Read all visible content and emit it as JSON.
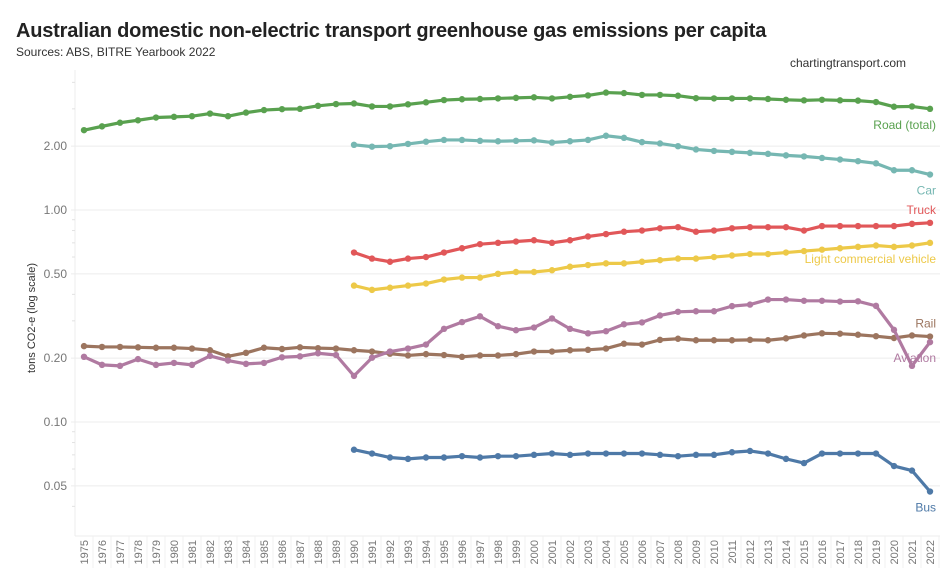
{
  "chart_data": {
    "type": "line",
    "title": "Australian domestic non-electric transport greenhouse gas emissions per capita",
    "subtitle": "Sources: ABS, BITRE Yearbook 2022",
    "credit": "chartingtransport.com",
    "xlabel": "",
    "ylabel": "tons CO2-e (log scale)",
    "yscale": "log",
    "ylim": [
      0.04,
      4.0
    ],
    "yticks": [
      0.05,
      0.1,
      0.2,
      0.5,
      1.0,
      2.0
    ],
    "ytick_labels": [
      "0.05",
      "0.10",
      "0.20",
      "0.50",
      "1.00",
      "2.00"
    ],
    "grid": true,
    "x": [
      "1975",
      "1976",
      "1977",
      "1978",
      "1979",
      "1980",
      "1981",
      "1982",
      "1983",
      "1984",
      "1985",
      "1986",
      "1987",
      "1988",
      "1989",
      "1990",
      "1991",
      "1992",
      "1993",
      "1994",
      "1995",
      "1996",
      "1997",
      "1998",
      "1999",
      "2000",
      "2001",
      "2002",
      "2003",
      "2004",
      "2005",
      "2006",
      "2007",
      "2008",
      "2009",
      "2010",
      "2011",
      "2012",
      "2013",
      "2014",
      "2015",
      "2016",
      "2017",
      "2018",
      "2019",
      "2020",
      "2021",
      "2022"
    ],
    "series": [
      {
        "name": "Road (total)",
        "color": "#59a14f",
        "label_position": "below-end",
        "values": [
          2.38,
          2.48,
          2.58,
          2.65,
          2.73,
          2.75,
          2.77,
          2.85,
          2.77,
          2.88,
          2.96,
          2.99,
          3.0,
          3.1,
          3.16,
          3.18,
          3.08,
          3.08,
          3.15,
          3.22,
          3.3,
          3.33,
          3.34,
          3.36,
          3.38,
          3.4,
          3.36,
          3.42,
          3.47,
          3.58,
          3.56,
          3.49,
          3.49,
          3.46,
          3.37,
          3.36,
          3.36,
          3.36,
          3.34,
          3.31,
          3.29,
          3.31,
          3.29,
          3.28,
          3.23,
          3.07,
          3.08,
          3.0
        ]
      },
      {
        "name": "Car",
        "color": "#76b7b2",
        "label_position": "below-end",
        "values": [
          null,
          null,
          null,
          null,
          null,
          null,
          null,
          null,
          null,
          null,
          null,
          null,
          null,
          null,
          null,
          2.03,
          1.99,
          2.0,
          2.05,
          2.1,
          2.14,
          2.14,
          2.12,
          2.11,
          2.12,
          2.13,
          2.08,
          2.11,
          2.14,
          2.24,
          2.19,
          2.09,
          2.06,
          2.0,
          1.93,
          1.9,
          1.88,
          1.86,
          1.84,
          1.81,
          1.79,
          1.76,
          1.73,
          1.7,
          1.66,
          1.54,
          1.54,
          1.47
        ]
      },
      {
        "name": "Truck",
        "color": "#e15759",
        "label_position": "above-end",
        "values": [
          null,
          null,
          null,
          null,
          null,
          null,
          null,
          null,
          null,
          null,
          null,
          null,
          null,
          null,
          null,
          0.63,
          0.59,
          0.57,
          0.59,
          0.6,
          0.63,
          0.66,
          0.69,
          0.7,
          0.71,
          0.72,
          0.7,
          0.72,
          0.75,
          0.77,
          0.79,
          0.8,
          0.82,
          0.83,
          0.79,
          0.8,
          0.82,
          0.83,
          0.83,
          0.83,
          0.8,
          0.84,
          0.84,
          0.84,
          0.84,
          0.84,
          0.86,
          0.87
        ]
      },
      {
        "name": "Light commercial vehicle",
        "color": "#edc948",
        "label_position": "below-end",
        "values": [
          null,
          null,
          null,
          null,
          null,
          null,
          null,
          null,
          null,
          null,
          null,
          null,
          null,
          null,
          null,
          0.44,
          0.42,
          0.43,
          0.44,
          0.45,
          0.47,
          0.48,
          0.48,
          0.5,
          0.51,
          0.51,
          0.52,
          0.54,
          0.55,
          0.56,
          0.56,
          0.57,
          0.58,
          0.59,
          0.59,
          0.6,
          0.61,
          0.62,
          0.62,
          0.63,
          0.64,
          0.65,
          0.66,
          0.67,
          0.68,
          0.67,
          0.68,
          0.7
        ]
      },
      {
        "name": "Rail",
        "color": "#9c755f",
        "label_position": "above-end",
        "values": [
          0.228,
          0.226,
          0.226,
          0.225,
          0.224,
          0.224,
          0.222,
          0.218,
          0.204,
          0.212,
          0.224,
          0.221,
          0.225,
          0.223,
          0.222,
          0.218,
          0.215,
          0.21,
          0.206,
          0.209,
          0.207,
          0.203,
          0.206,
          0.206,
          0.209,
          0.215,
          0.215,
          0.218,
          0.219,
          0.222,
          0.234,
          0.232,
          0.244,
          0.247,
          0.243,
          0.243,
          0.243,
          0.244,
          0.243,
          0.248,
          0.256,
          0.262,
          0.261,
          0.258,
          0.254,
          0.249,
          0.256,
          0.253
        ]
      },
      {
        "name": "Aviation",
        "color": "#b07aa1",
        "label_position": "below-end",
        "values": [
          0.203,
          0.186,
          0.184,
          0.198,
          0.186,
          0.19,
          0.186,
          0.205,
          0.195,
          0.188,
          0.19,
          0.202,
          0.204,
          0.211,
          0.207,
          0.165,
          0.201,
          0.215,
          0.222,
          0.232,
          0.275,
          0.296,
          0.315,
          0.283,
          0.271,
          0.279,
          0.308,
          0.275,
          0.262,
          0.268,
          0.289,
          0.295,
          0.318,
          0.331,
          0.333,
          0.333,
          0.352,
          0.358,
          0.378,
          0.378,
          0.373,
          0.373,
          0.37,
          0.371,
          0.353,
          0.272,
          0.184,
          0.238
        ]
      },
      {
        "name": "Bus",
        "color": "#4e79a7",
        "label_position": "below-end",
        "values": [
          null,
          null,
          null,
          null,
          null,
          null,
          null,
          null,
          null,
          null,
          null,
          null,
          null,
          null,
          null,
          0.074,
          0.071,
          0.068,
          0.067,
          0.068,
          0.068,
          0.069,
          0.068,
          0.069,
          0.069,
          0.07,
          0.071,
          0.07,
          0.071,
          0.071,
          0.071,
          0.071,
          0.07,
          0.069,
          0.07,
          0.07,
          0.072,
          0.073,
          0.071,
          0.067,
          0.064,
          0.071,
          0.071,
          0.071,
          0.071,
          0.062,
          0.059,
          0.047
        ]
      }
    ]
  }
}
